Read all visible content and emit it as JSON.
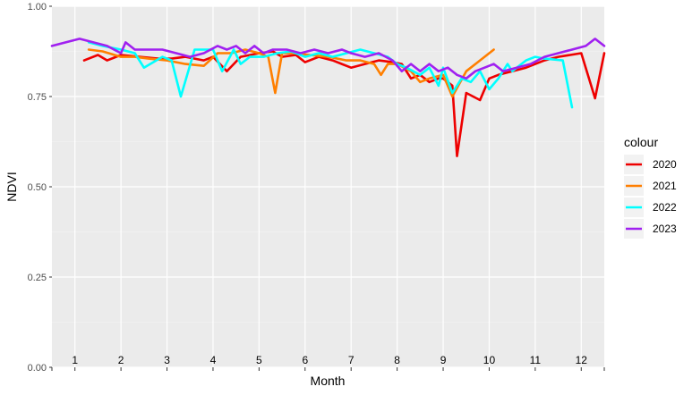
{
  "chart_data": {
    "type": "line",
    "xlabel": "Month",
    "ylabel": "NDVI",
    "ylim": [
      0,
      1
    ],
    "y_ticks": [
      "0.00",
      "0.25",
      "0.50",
      "0.75",
      "1.00"
    ],
    "y_tick_values": [
      0,
      0.25,
      0.5,
      0.75,
      1.0
    ],
    "xlim": [
      0.5,
      12.5
    ],
    "month_labels": [
      "1",
      "2",
      "3",
      "4",
      "5",
      "6",
      "7",
      "8",
      "9",
      "10",
      "11",
      "12"
    ],
    "grid": true,
    "legend": {
      "title": "colour",
      "position": "right"
    },
    "series": [
      {
        "name": "2020",
        "color": "#EE0000",
        "x": [
          1.2,
          1.5,
          1.7,
          2.0,
          2.4,
          2.8,
          3.1,
          3.4,
          3.8,
          4.0,
          4.3,
          4.6,
          5.0,
          5.3,
          5.5,
          5.8,
          6.0,
          6.3,
          6.6,
          7.0,
          7.3,
          7.6,
          7.9,
          8.1,
          8.3,
          8.5,
          8.7,
          8.9,
          9.0,
          9.1,
          9.2,
          9.3,
          9.5,
          9.8,
          10.0,
          10.2,
          10.5,
          10.8,
          11.2,
          11.5,
          12.0,
          12.3,
          12.5
        ],
        "y": [
          0.85,
          0.865,
          0.85,
          0.865,
          0.86,
          0.855,
          0.855,
          0.86,
          0.85,
          0.86,
          0.82,
          0.86,
          0.87,
          0.875,
          0.86,
          0.865,
          0.845,
          0.86,
          0.85,
          0.83,
          0.84,
          0.85,
          0.845,
          0.84,
          0.8,
          0.81,
          0.79,
          0.8,
          0.8,
          0.79,
          0.78,
          0.585,
          0.76,
          0.74,
          0.8,
          0.81,
          0.82,
          0.83,
          0.85,
          0.86,
          0.87,
          0.745,
          0.87
        ]
      },
      {
        "name": "2021",
        "color": "#FF7F00",
        "x": [
          1.3,
          1.6,
          2.0,
          2.3,
          2.6,
          3.0,
          3.4,
          3.8,
          4.1,
          4.4,
          4.7,
          5.0,
          5.2,
          5.35,
          5.5,
          5.8,
          6.1,
          6.5,
          6.9,
          7.2,
          7.5,
          7.65,
          7.8,
          8.0,
          8.3,
          8.5,
          8.7,
          9.0,
          9.2,
          9.5,
          9.8,
          10.1
        ],
        "y": [
          0.88,
          0.875,
          0.86,
          0.86,
          0.855,
          0.85,
          0.84,
          0.835,
          0.87,
          0.87,
          0.88,
          0.87,
          0.86,
          0.76,
          0.87,
          0.87,
          0.865,
          0.86,
          0.85,
          0.85,
          0.84,
          0.81,
          0.84,
          0.84,
          0.82,
          0.79,
          0.8,
          0.81,
          0.75,
          0.82,
          0.85,
          0.88
        ]
      },
      {
        "name": "2022",
        "color": "#00FFFF",
        "x": [
          1.3,
          1.6,
          2.0,
          2.3,
          2.5,
          2.9,
          3.1,
          3.3,
          3.6,
          4.0,
          4.2,
          4.45,
          4.6,
          4.8,
          5.1,
          5.4,
          5.7,
          6.0,
          6.3,
          6.6,
          6.9,
          7.2,
          7.5,
          7.8,
          8.0,
          8.2,
          8.5,
          8.7,
          8.9,
          9.0,
          9.2,
          9.4,
          9.6,
          9.8,
          10.0,
          10.2,
          10.4,
          10.5,
          10.8,
          11.0,
          11.2,
          11.6,
          11.8
        ],
        "y": [
          0.9,
          0.89,
          0.88,
          0.87,
          0.83,
          0.86,
          0.85,
          0.75,
          0.88,
          0.88,
          0.82,
          0.88,
          0.84,
          0.86,
          0.86,
          0.87,
          0.875,
          0.86,
          0.87,
          0.86,
          0.87,
          0.88,
          0.87,
          0.86,
          0.84,
          0.83,
          0.81,
          0.83,
          0.78,
          0.83,
          0.76,
          0.8,
          0.79,
          0.82,
          0.77,
          0.8,
          0.84,
          0.82,
          0.85,
          0.86,
          0.855,
          0.85,
          0.72
        ]
      },
      {
        "name": "2023",
        "color": "#A020F0",
        "x": [
          0.5,
          0.8,
          1.1,
          1.4,
          1.7,
          2.0,
          2.1,
          2.3,
          2.6,
          2.9,
          3.2,
          3.5,
          3.8,
          4.1,
          4.3,
          4.5,
          4.7,
          4.9,
          5.1,
          5.3,
          5.6,
          5.9,
          6.2,
          6.5,
          6.8,
          7.0,
          7.3,
          7.6,
          7.9,
          8.1,
          8.3,
          8.5,
          8.7,
          8.9,
          9.1,
          9.3,
          9.5,
          9.7,
          9.9,
          10.1,
          10.3,
          10.6,
          10.9,
          11.2,
          11.5,
          11.8,
          12.1,
          12.3,
          12.5
        ],
        "y": [
          0.89,
          0.9,
          0.91,
          0.9,
          0.89,
          0.87,
          0.9,
          0.88,
          0.88,
          0.88,
          0.87,
          0.86,
          0.87,
          0.89,
          0.88,
          0.89,
          0.87,
          0.89,
          0.87,
          0.88,
          0.88,
          0.87,
          0.88,
          0.87,
          0.88,
          0.87,
          0.86,
          0.87,
          0.85,
          0.82,
          0.84,
          0.82,
          0.84,
          0.82,
          0.83,
          0.81,
          0.8,
          0.82,
          0.83,
          0.84,
          0.82,
          0.83,
          0.84,
          0.86,
          0.87,
          0.88,
          0.89,
          0.91,
          0.89
        ]
      }
    ]
  }
}
